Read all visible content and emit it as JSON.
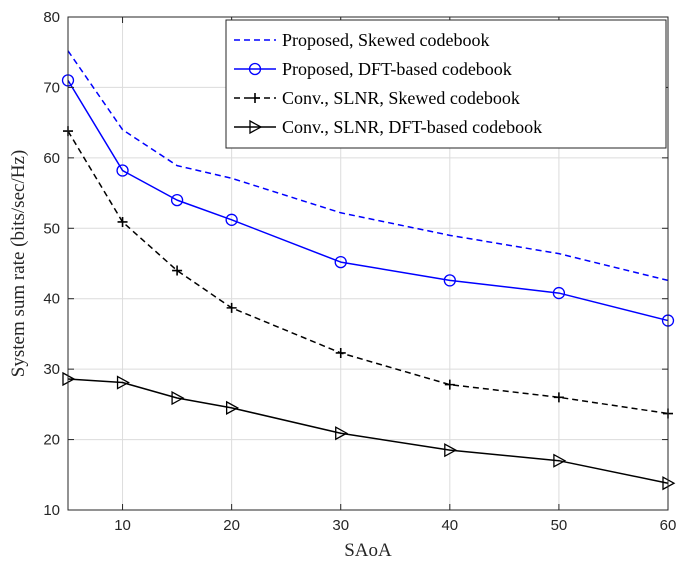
{
  "chart_data": {
    "type": "line",
    "xlabel": "SAoA",
    "ylabel": "System sum rate (bits/sec/Hz)",
    "xlim": [
      5,
      60
    ],
    "ylim": [
      10,
      80
    ],
    "xticks": [
      10,
      20,
      30,
      40,
      50,
      60
    ],
    "yticks": [
      10,
      20,
      30,
      40,
      50,
      60,
      70,
      80
    ],
    "grid": true,
    "legend_position": "top-right",
    "x": [
      5,
      10,
      15,
      20,
      30,
      40,
      50,
      60
    ],
    "series": [
      {
        "name": "Proposed, Skewed codebook",
        "values": [
          75.2,
          64.0,
          58.9,
          57.1,
          52.2,
          49.0,
          46.4,
          42.6
        ],
        "color": "#0000ff",
        "line_style": "dashed",
        "marker": "none"
      },
      {
        "name": "Proposed, DFT-based codebook",
        "values": [
          71.0,
          58.2,
          54.0,
          51.2,
          45.2,
          42.6,
          40.8,
          36.9
        ],
        "color": "#0000ff",
        "line_style": "solid",
        "marker": "circle"
      },
      {
        "name": "Conv., SLNR, Skewed codebook",
        "values": [
          63.8,
          50.9,
          44.0,
          38.7,
          32.3,
          27.8,
          26.0,
          23.7
        ],
        "color": "#000000",
        "line_style": "dashed",
        "marker": "plus"
      },
      {
        "name": "Conv., SLNR, DFT-based codebook",
        "values": [
          28.6,
          28.1,
          25.9,
          24.5,
          20.9,
          18.5,
          17.0,
          13.8
        ],
        "color": "#000000",
        "line_style": "solid",
        "marker": "triangle-right"
      }
    ]
  }
}
